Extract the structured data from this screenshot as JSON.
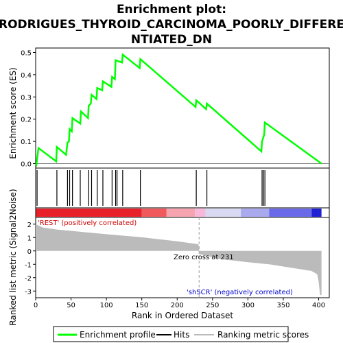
{
  "title_line1": "Enrichment plot:",
  "title_line2": "RODRIGUES_THYROID_CARCINOMA_POORLY_DIFFERE",
  "title_line3": "NTIATED_DN",
  "chart_data": {
    "type": "line",
    "es_panel": {
      "ylabel": "Enrichment score (ES)",
      "ylim": [
        -0.02,
        0.52
      ],
      "yticks": [
        "0.0",
        "0.1",
        "0.2",
        "0.3",
        "0.4",
        "0.5"
      ],
      "ytick_values": [
        0.0,
        0.1,
        0.2,
        0.3,
        0.4,
        0.5
      ],
      "series": [
        {
          "name": "Enrichment profile",
          "color": "#00ff00",
          "x": [
            0,
            1,
            4,
            29,
            30,
            43,
            45,
            47,
            48,
            51,
            52,
            63,
            64,
            74,
            75,
            78,
            79,
            86,
            87,
            94,
            95,
            107,
            108,
            112,
            113,
            122,
            123,
            147,
            148,
            226,
            227,
            241,
            242,
            319,
            320,
            323,
            324,
            404
          ],
          "y": [
            0.0,
            -0.005,
            0.07,
            0.01,
            0.075,
            0.04,
            0.095,
            0.1,
            0.155,
            0.145,
            0.205,
            0.18,
            0.235,
            0.205,
            0.26,
            0.27,
            0.31,
            0.29,
            0.34,
            0.33,
            0.37,
            0.345,
            0.39,
            0.38,
            0.465,
            0.455,
            0.49,
            0.43,
            0.47,
            0.255,
            0.285,
            0.245,
            0.27,
            0.055,
            0.1,
            0.13,
            0.185,
            0.0
          ]
        }
      ]
    },
    "hits": [
      2,
      30,
      45,
      48,
      52,
      63,
      75,
      79,
      87,
      95,
      108,
      113,
      115,
      123,
      148,
      227,
      242,
      320,
      322,
      324
    ],
    "ranked_metric": {
      "ylabel": "Ranked list metric (Signal2Noise)",
      "xlabel": "Rank in Ordered Dataset",
      "ylim": [
        -3.5,
        2.5
      ],
      "yticks": [
        "-3",
        "-2",
        "-1",
        "0",
        "1",
        "2"
      ],
      "ytick_values": [
        -3,
        -2,
        -1,
        0,
        1,
        2
      ],
      "xlim": [
        0,
        415
      ],
      "xticks": [
        "0",
        "50",
        "100",
        "150",
        "200",
        "250",
        "300",
        "350",
        "400"
      ],
      "xtick_values": [
        0,
        50,
        100,
        150,
        200,
        250,
        300,
        350,
        400
      ],
      "profile_points": [
        [
          0,
          2.0
        ],
        [
          10,
          1.75
        ],
        [
          30,
          1.6
        ],
        [
          60,
          1.45
        ],
        [
          100,
          1.25
        ],
        [
          150,
          1.02
        ],
        [
          200,
          0.72
        ],
        [
          230,
          0.5
        ],
        [
          232,
          -0.25
        ],
        [
          260,
          -0.6
        ],
        [
          300,
          -0.85
        ],
        [
          330,
          -1.0
        ],
        [
          360,
          -1.25
        ],
        [
          390,
          -1.5
        ],
        [
          398,
          -1.75
        ],
        [
          400,
          -2.3
        ],
        [
          402,
          -3.3
        ],
        [
          404,
          -3.3
        ]
      ],
      "zero_cross_label": "Zero cross at 231",
      "zero_cross": 231,
      "pos_label": "'REST' (positively correlated)",
      "neg_label": "'shSCR' (negatively correlated)",
      "pos_color": "#cc0000",
      "neg_color": "#0000cc"
    },
    "heat_colors": [
      "#e8202a",
      "#f05a5c",
      "#f6a3b0",
      "#f7b8d9",
      "#d9d9f3",
      "#a9a9ee",
      "#6a6ae8",
      "#1f1fd4"
    ],
    "heat_breaks": [
      0,
      150,
      185,
      225,
      240,
      290,
      330,
      390,
      400,
      404
    ]
  },
  "legend": {
    "items": [
      {
        "label": "Enrichment profile",
        "color": "#00ff00"
      },
      {
        "label": "Hits",
        "color": "#000000"
      },
      {
        "label": "Ranking metric scores",
        "color": "#bbbbbb"
      }
    ]
  }
}
